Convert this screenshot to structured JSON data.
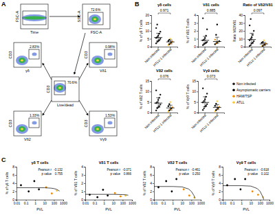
{
  "panel_labels": [
    "A",
    "B",
    "C"
  ],
  "gating": {
    "plots": [
      {
        "xlabel": "Time",
        "ylabel": "FSC-A"
      },
      {
        "xlabel": "FSC-A",
        "ylabel": "SSC-A",
        "gate": "72.6%"
      },
      {
        "xlabel": "Live/dead",
        "ylabel": "CD3",
        "gate": "70.6%"
      },
      {
        "xlabel": "γδ",
        "ylabel": "CD3",
        "gate": "2.83%"
      },
      {
        "xlabel": "Vδ1",
        "ylabel": "CD3",
        "gate": "0.98%"
      },
      {
        "xlabel": "Vδ2",
        "ylabel": "CD3",
        "gate": "1.33%"
      },
      {
        "xlabel": "Vγ9",
        "ylabel": "CD3",
        "gate": "1.53%"
      }
    ]
  },
  "legend_entries": [
    {
      "name": "Non infected",
      "color": "#1a1a1a"
    },
    {
      "name": "Asymptomatic carriers",
      "color": "#000000"
    },
    {
      "name": "HAM/TSP",
      "color": "#f08c00"
    },
    {
      "name": "ATLL",
      "color": "#ffc933"
    }
  ],
  "chart_data": [
    {
      "type": "strip",
      "title": "γδ cells",
      "ylabel": "% of γδ T cells",
      "categories": [
        "Non infected",
        "HTLV-1 infected"
      ],
      "values": [
        [
          2.1,
          3.0,
          3.5,
          4.2,
          5.0,
          5.5,
          6.1,
          7.0,
          8.2,
          9.5,
          11.8,
          14.0
        ],
        [
          1.0,
          1.5,
          2.0,
          2.8,
          3.2,
          3.6,
          4.4,
          5.0
        ]
      ],
      "colors": [
        [
          "#1a1a1a",
          "#1a1a1a",
          "#1a1a1a",
          "#1a1a1a",
          "#1a1a1a",
          "#1a1a1a",
          "#1a1a1a",
          "#1a1a1a",
          "#1a1a1a",
          "#1a1a1a",
          "#1a1a1a",
          "#1a1a1a"
        ],
        [
          "#ffc933",
          "#000000",
          "#f08c00",
          "#000000",
          "#f08c00",
          "#000000",
          "#000000",
          "#ffc933"
        ]
      ],
      "median": [
        5.8,
        3.0
      ],
      "q1": [
        3.8,
        1.8
      ],
      "q3": [
        8.5,
        4.2
      ],
      "annotation": "0.971",
      "ylim": [
        0,
        20
      ],
      "yticks": [
        0,
        5,
        10,
        15,
        20
      ]
    },
    {
      "type": "strip",
      "title": "Vδ1 cells",
      "ylabel": "% of Vδ1 T cells",
      "categories": [
        "Non infected",
        "HTLV-1 infected"
      ],
      "values": [
        [
          0.2,
          0.3,
          0.4,
          0.5,
          0.6,
          0.8,
          0.9,
          1.1,
          1.4,
          2.2,
          3.6
        ],
        [
          0.3,
          0.4,
          0.5,
          0.6,
          0.7,
          0.9,
          1.5,
          2.8
        ]
      ],
      "colors": [
        [
          "#1a1a1a",
          "#1a1a1a",
          "#1a1a1a",
          "#1a1a1a",
          "#1a1a1a",
          "#1a1a1a",
          "#1a1a1a",
          "#1a1a1a",
          "#1a1a1a",
          "#1a1a1a",
          "#1a1a1a"
        ],
        [
          "#000000",
          "#f08c00",
          "#000000",
          "#ffc933",
          "#000000",
          "#f08c00",
          "#000000",
          "#000000"
        ]
      ],
      "median": [
        0.8,
        0.65
      ],
      "q1": [
        0.45,
        0.45
      ],
      "q3": [
        1.3,
        1.2
      ],
      "annotation": "0.885",
      "ylim": [
        0,
        4
      ],
      "yticks": [
        0,
        1,
        2,
        3,
        4
      ]
    },
    {
      "type": "strip",
      "title": "Ratio of Vδ2/Vδ1",
      "ylabel": "Ratio Vδ2/Vδ1",
      "categories": [
        "Non infected",
        "HTLV-1 infected"
      ],
      "values": [
        [
          1,
          2,
          4,
          5,
          7,
          8,
          10,
          12,
          15,
          20,
          27,
          35
        ],
        [
          0.5,
          1,
          2,
          3,
          4,
          5,
          6,
          8
        ]
      ],
      "colors": [
        [
          "#1a1a1a",
          "#1a1a1a",
          "#1a1a1a",
          "#1a1a1a",
          "#1a1a1a",
          "#1a1a1a",
          "#1a1a1a",
          "#1a1a1a",
          "#1a1a1a",
          "#1a1a1a",
          "#1a1a1a",
          "#1a1a1a"
        ],
        [
          "#ffc933",
          "#000000",
          "#f08c00",
          "#000000",
          "#f08c00",
          "#000000",
          "#000000",
          "#ffc933"
        ]
      ],
      "median": [
        9,
        3.5
      ],
      "q1": [
        4.5,
        1.5
      ],
      "q3": [
        17,
        5.5
      ],
      "annotation": "0.097",
      "ylim": [
        0,
        40
      ],
      "yticks": [
        0,
        10,
        20,
        30,
        40
      ]
    },
    {
      "type": "strip",
      "title": "Vδ2 cells",
      "ylabel": "% of Vδ2 T cells",
      "categories": [
        "Non infected",
        "HTLV-1 infected"
      ],
      "values": [
        [
          1,
          2,
          2.5,
          3,
          3.8,
          4.5,
          5,
          6,
          7,
          8.5,
          10.5
        ],
        [
          0.5,
          1,
          1.5,
          2,
          2.5,
          3,
          4,
          5
        ]
      ],
      "colors": [
        [
          "#1a1a1a",
          "#1a1a1a",
          "#1a1a1a",
          "#1a1a1a",
          "#1a1a1a",
          "#1a1a1a",
          "#1a1a1a",
          "#1a1a1a",
          "#1a1a1a",
          "#1a1a1a",
          "#1a1a1a"
        ],
        [
          "#ffc933",
          "#000000",
          "#f08c00",
          "#000000",
          "#f08c00",
          "#000000",
          "#000000",
          "#ffc933"
        ]
      ],
      "median": [
        4.5,
        2.2
      ],
      "q1": [
        2.5,
        1.2
      ],
      "q3": [
        7,
        3.5
      ],
      "annotation": "0.076",
      "ylim": [
        0,
        15
      ],
      "yticks": [
        0,
        5,
        10,
        15
      ]
    },
    {
      "type": "strip",
      "title": "Vγ9 cells",
      "ylabel": "% of Vγ9 T cells",
      "categories": [
        "Non infected",
        "HTLV-1 infected"
      ],
      "values": [
        [
          1.2,
          2,
          2.8,
          3.3,
          4,
          4.8,
          5.5,
          6.3,
          7.5,
          9,
          11.5
        ],
        [
          0.6,
          1.1,
          1.6,
          2.1,
          2.7,
          3.2,
          4.2,
          5.4
        ]
      ],
      "colors": [
        [
          "#1a1a1a",
          "#1a1a1a",
          "#1a1a1a",
          "#1a1a1a",
          "#1a1a1a",
          "#1a1a1a",
          "#1a1a1a",
          "#1a1a1a",
          "#1a1a1a",
          "#1a1a1a",
          "#1a1a1a"
        ],
        [
          "#ffc933",
          "#000000",
          "#f08c00",
          "#000000",
          "#f08c00",
          "#000000",
          "#000000",
          "#ffc933"
        ]
      ],
      "median": [
        4.8,
        2.4
      ],
      "q1": [
        2.8,
        1.4
      ],
      "q3": [
        7.5,
        3.8
      ],
      "annotation": "0.073",
      "ylim": [
        0,
        15
      ],
      "yticks": [
        0,
        5,
        10,
        15
      ]
    },
    {
      "type": "scatter",
      "title": "γδ T cells",
      "xlabel": "PVL",
      "ylabel": "% of γδ T cells",
      "log": "x",
      "xlim": [
        0.01,
        1000
      ],
      "xticks": [
        0.01,
        0.1,
        1,
        10,
        100,
        1000
      ],
      "ylim": [
        0,
        8
      ],
      "yticks": [
        0,
        2,
        4,
        6,
        8
      ],
      "series": [
        {
          "type": "scatter",
          "x": [
            0.03,
            0.2,
            0.8,
            2.5,
            15,
            60,
            200
          ],
          "values": [
            3.5,
            2.0,
            4.5,
            2.5,
            3.0,
            1.5,
            2.2
          ],
          "colors": [
            "#000000",
            "#000000",
            "#000000",
            "#000000",
            "#f08c00",
            "#f08c00",
            "#ffc933"
          ]
        },
        {
          "type": "line",
          "color": "#000000",
          "x": [
            0.01,
            1,
            10,
            50,
            100,
            200,
            400
          ],
          "values": [
            2.9,
            2.9,
            2.9,
            2.8,
            2.7,
            2.5,
            2.1
          ]
        }
      ],
      "stats": [
        {
          "label": "Pearson r",
          "value": "-0.132"
        },
        {
          "label": "p value",
          "value": "0.755"
        }
      ]
    },
    {
      "type": "scatter",
      "title": "Vδ1 T cells",
      "xlabel": "PVL",
      "ylabel": "% of Vδ1 T cells",
      "log": "x",
      "xlim": [
        0.01,
        1000
      ],
      "xticks": [
        0.01,
        0.1,
        1,
        10,
        100,
        1000
      ],
      "ylim": [
        0,
        4
      ],
      "yticks": [
        0,
        1,
        2,
        3,
        4
      ],
      "series": [
        {
          "type": "scatter",
          "x": [
            0.03,
            0.2,
            0.8,
            2.5,
            15,
            60,
            200
          ],
          "values": [
            0.6,
            0.3,
            1.2,
            0.5,
            0.8,
            0.4,
            0.5
          ],
          "colors": [
            "#000000",
            "#000000",
            "#000000",
            "#000000",
            "#f08c00",
            "#f08c00",
            "#ffc933"
          ]
        },
        {
          "type": "line",
          "color": "#000000",
          "x": [
            0.01,
            10,
            100,
            200,
            400
          ],
          "values": [
            0.65,
            0.65,
            0.62,
            0.6,
            0.55
          ]
        }
      ],
      "stats": [
        {
          "label": "Pearson r",
          "value": "-0.071"
        },
        {
          "label": "p value",
          "value": "0.866"
        }
      ]
    },
    {
      "type": "scatter",
      "title": "Vδ2 T cells",
      "xlabel": "PVL",
      "ylabel": "% of Vδ2 T cells",
      "log": "x",
      "xlim": [
        0.01,
        1000
      ],
      "xticks": [
        0.01,
        0.1,
        1,
        10,
        100,
        1000
      ],
      "ylim": [
        0,
        8
      ],
      "yticks": [
        0,
        2,
        4,
        6,
        8
      ],
      "series": [
        {
          "type": "scatter",
          "x": [
            0.03,
            0.2,
            0.8,
            2.5,
            15,
            60,
            200
          ],
          "values": [
            3.0,
            4.5,
            2.0,
            5.0,
            2.5,
            1.0,
            0.5
          ],
          "colors": [
            "#000000",
            "#000000",
            "#000000",
            "#000000",
            "#f08c00",
            "#f08c00",
            "#ffc933"
          ]
        },
        {
          "type": "line",
          "color": "#000000",
          "x": [
            0.01,
            1,
            10,
            50,
            100,
            200,
            250
          ],
          "values": [
            3.2,
            3.2,
            3.1,
            2.6,
            2.0,
            0.9,
            0.3
          ]
        }
      ],
      "stats": [
        {
          "label": "Pearson r",
          "value": "-0.461"
        },
        {
          "label": "p value",
          "value": "0.250"
        }
      ]
    },
    {
      "type": "scatter",
      "title": "Vγ9 T cells",
      "xlabel": "PVL",
      "ylabel": "% of Vγ9 T cells",
      "log": "x",
      "xlim": [
        0.01,
        1000
      ],
      "xticks": [
        0.01,
        0.1,
        1,
        10,
        100,
        1000
      ],
      "ylim": [
        0,
        8
      ],
      "yticks": [
        0,
        2,
        4,
        6,
        8
      ],
      "series": [
        {
          "type": "scatter",
          "x": [
            0.03,
            0.2,
            0.8,
            2.5,
            15,
            60,
            200
          ],
          "values": [
            3.5,
            5.0,
            2.5,
            5.0,
            2.0,
            1.2,
            0.6
          ],
          "colors": [
            "#000000",
            "#000000",
            "#000000",
            "#000000",
            "#f08c00",
            "#f08c00",
            "#ffc933"
          ]
        },
        {
          "type": "line",
          "color": "#000000",
          "x": [
            0.01,
            1,
            10,
            50,
            100,
            200,
            240
          ],
          "values": [
            3.4,
            3.4,
            3.3,
            2.7,
            2.0,
            0.6,
            0.05
          ]
        }
      ],
      "stats": [
        {
          "label": "Pearson r",
          "value": "-0.618"
        },
        {
          "label": "p value",
          "value": "0.102"
        }
      ]
    }
  ]
}
